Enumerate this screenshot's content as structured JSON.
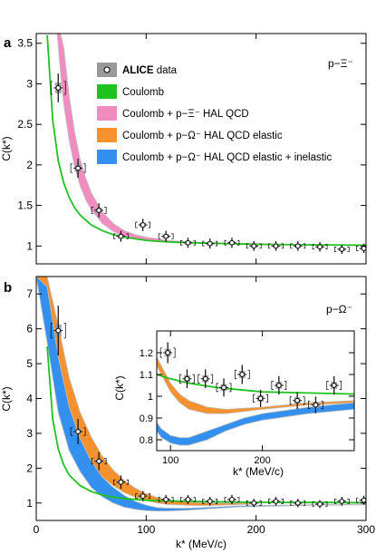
{
  "colors": {
    "coulomb": "#1fc21f",
    "xi_band": "#f08cc0",
    "omega_elastic": "#f5922e",
    "omega_inelastic": "#3390ee",
    "stat_err": "#1a1a1a",
    "syst_box": "#999999"
  },
  "legend": {
    "data_bold": "ALICE",
    "data_rest": " data",
    "items": [
      "Coulomb",
      "Coulomb + p−Ξ⁻ HAL QCD",
      "Coulomb + p−Ω⁻ HAL QCD elastic",
      "Coulomb + p−Ω⁻ HAL QCD elastic + inelastic"
    ]
  },
  "chart_data": [
    {
      "type": "scatter",
      "panel_label": "a",
      "system_label": "p−Ξ⁻",
      "ylabel": "C(k*)",
      "xlim": [
        0,
        300
      ],
      "ylim": [
        0.78,
        3.62
      ],
      "yticks": [
        1,
        1.5,
        2,
        2.5,
        3,
        3.5
      ],
      "ytick_labels": [
        "1",
        "1.5",
        "2",
        "2.5",
        "3",
        "3.5"
      ],
      "series": [
        {
          "name": "ALICE data",
          "x": [
            20,
            38,
            57,
            77,
            97,
            118,
            138,
            158,
            178,
            198,
            218,
            238,
            258,
            278,
            298
          ],
          "y": [
            2.95,
            1.96,
            1.44,
            1.12,
            1.26,
            1.12,
            1.04,
            1.03,
            1.04,
            1.0,
            1.0,
            1.0,
            0.99,
            0.96,
            0.97
          ]
        },
        {
          "name": "Coulomb",
          "x": [
            10,
            15,
            20,
            25,
            30,
            35,
            40,
            50,
            60,
            70,
            80,
            100,
            120,
            140,
            170,
            200,
            250,
            300
          ],
          "y": [
            3.6,
            2.55,
            2.05,
            1.78,
            1.6,
            1.47,
            1.38,
            1.26,
            1.19,
            1.14,
            1.11,
            1.07,
            1.05,
            1.04,
            1.03,
            1.02,
            1.015,
            1.01
          ]
        },
        {
          "name": "Coulomb + p−Ξ⁻ HAL QCD",
          "x": [
            19,
            22,
            25,
            30,
            35,
            40,
            45,
            50,
            60,
            70,
            80,
            90,
            100,
            120,
            140,
            160,
            200,
            250,
            300
          ],
          "low": [
            3.62,
            3.15,
            2.75,
            2.3,
            1.97,
            1.74,
            1.57,
            1.45,
            1.28,
            1.18,
            1.12,
            1.09,
            1.07,
            1.05,
            1.04,
            1.03,
            1.02,
            1.01,
            1.005
          ],
          "high": [
            3.62,
            3.62,
            3.45,
            2.85,
            2.4,
            2.07,
            1.84,
            1.66,
            1.42,
            1.28,
            1.19,
            1.14,
            1.11,
            1.07,
            1.05,
            1.04,
            1.03,
            1.015,
            1.01
          ]
        }
      ]
    },
    {
      "type": "scatter",
      "panel_label": "b",
      "system_label": "p−Ω⁻",
      "xlabel": "k* (MeV/c)",
      "ylabel": "C(k*)",
      "xlim": [
        0,
        300
      ],
      "ylim": [
        0.5,
        7.5
      ],
      "xticks": [
        0,
        100,
        200,
        300
      ],
      "yticks": [
        1,
        2,
        3,
        4,
        5,
        6,
        7
      ],
      "series": [
        {
          "name": "ALICE data",
          "x": [
            20,
            38,
            57,
            77,
            97,
            118,
            138,
            158,
            178,
            198,
            218,
            238,
            258,
            278,
            298
          ],
          "y": [
            5.95,
            3.05,
            2.2,
            1.6,
            1.2,
            1.1,
            1.1,
            1.05,
            1.1,
            1.0,
            1.05,
            1.0,
            0.97,
            1.05,
            1.08
          ]
        },
        {
          "name": "Coulomb",
          "x": [
            10,
            15,
            20,
            25,
            30,
            40,
            50,
            60,
            70,
            80,
            100,
            120,
            150,
            200,
            250,
            300
          ],
          "y": [
            5.5,
            3.4,
            2.55,
            2.1,
            1.8,
            1.5,
            1.33,
            1.23,
            1.17,
            1.13,
            1.08,
            1.06,
            1.04,
            1.02,
            1.015,
            1.01
          ]
        },
        {
          "name": "Coulomb + p−Ω⁻ HAL QCD elastic",
          "x": [
            0,
            10,
            20,
            30,
            40,
            50,
            60,
            70,
            80,
            90,
            100,
            110,
            120,
            140,
            160,
            180,
            200
          ],
          "low": [
            7.5,
            6.5,
            4.6,
            3.35,
            2.6,
            2.1,
            1.75,
            1.5,
            1.3,
            1.17,
            1.07,
            1.0,
            0.96,
            0.93,
            0.93,
            0.95,
            0.97
          ],
          "high": [
            7.5,
            7.5,
            6.1,
            4.6,
            3.6,
            2.9,
            2.35,
            1.95,
            1.65,
            1.43,
            1.27,
            1.16,
            1.09,
            1.02,
            1.0,
            1.0,
            1.0
          ]
        },
        {
          "name": "Coulomb + p−Ω⁻ HAL QCD elastic + inelastic",
          "x": [
            0,
            10,
            20,
            30,
            40,
            50,
            60,
            70,
            80,
            90,
            100,
            110,
            120,
            140,
            160,
            180,
            200,
            250,
            300
          ],
          "low": [
            7.5,
            5.6,
            3.6,
            2.5,
            1.9,
            1.45,
            1.18,
            1.0,
            0.88,
            0.82,
            0.78,
            0.77,
            0.77,
            0.8,
            0.84,
            0.88,
            0.9,
            0.93,
            0.95
          ],
          "high": [
            7.5,
            7.2,
            5.2,
            3.75,
            2.85,
            2.2,
            1.75,
            1.45,
            1.22,
            1.05,
            0.94,
            0.87,
            0.85,
            0.85,
            0.88,
            0.91,
            0.93,
            0.95,
            0.97
          ]
        }
      ]
    },
    {
      "type": "scatter",
      "inset": true,
      "xlabel": "k* (MeV/c)",
      "ylabel": "C(k*)",
      "xlim": [
        85,
        300
      ],
      "ylim": [
        0.75,
        1.3
      ],
      "xticks": [
        100,
        200
      ],
      "yticks": [
        0.8,
        0.9,
        1,
        1.1,
        1.2
      ],
      "ytick_labels": [
        "0.8",
        "0.9",
        "1",
        "1.1",
        "1.2"
      ],
      "series": [
        {
          "name": "ALICE data",
          "x": [
            97,
            118,
            138,
            158,
            178,
            198,
            218,
            238,
            258,
            278
          ],
          "y": [
            1.2,
            1.08,
            1.08,
            1.04,
            1.1,
            0.99,
            1.05,
            0.98,
            0.96,
            1.05
          ]
        },
        {
          "name": "Coulomb",
          "x": [
            85,
            100,
            120,
            150,
            200,
            250,
            300
          ],
          "y": [
            1.1,
            1.08,
            1.06,
            1.04,
            1.02,
            1.015,
            1.01
          ]
        },
        {
          "name": "Coulomb + p−Ω⁻ HAL QCD elastic",
          "x": [
            85,
            90,
            100,
            110,
            120,
            140,
            160,
            180,
            200,
            250,
            300
          ],
          "low": [
            1.14,
            1.1,
            1.02,
            0.97,
            0.94,
            0.92,
            0.92,
            0.93,
            0.94,
            0.96,
            0.97
          ],
          "high": [
            1.18,
            1.14,
            1.06,
            1.01,
            0.98,
            0.95,
            0.94,
            0.945,
            0.95,
            0.97,
            0.98
          ]
        },
        {
          "name": "Coulomb + p−Ω⁻ HAL QCD elastic + inelastic",
          "x": [
            85,
            90,
            100,
            110,
            120,
            140,
            160,
            180,
            200,
            250,
            300
          ],
          "low": [
            0.84,
            0.81,
            0.785,
            0.775,
            0.775,
            0.8,
            0.84,
            0.87,
            0.89,
            0.92,
            0.94
          ],
          "high": [
            0.88,
            0.85,
            0.82,
            0.81,
            0.81,
            0.84,
            0.87,
            0.9,
            0.92,
            0.95,
            0.97
          ]
        }
      ]
    }
  ]
}
